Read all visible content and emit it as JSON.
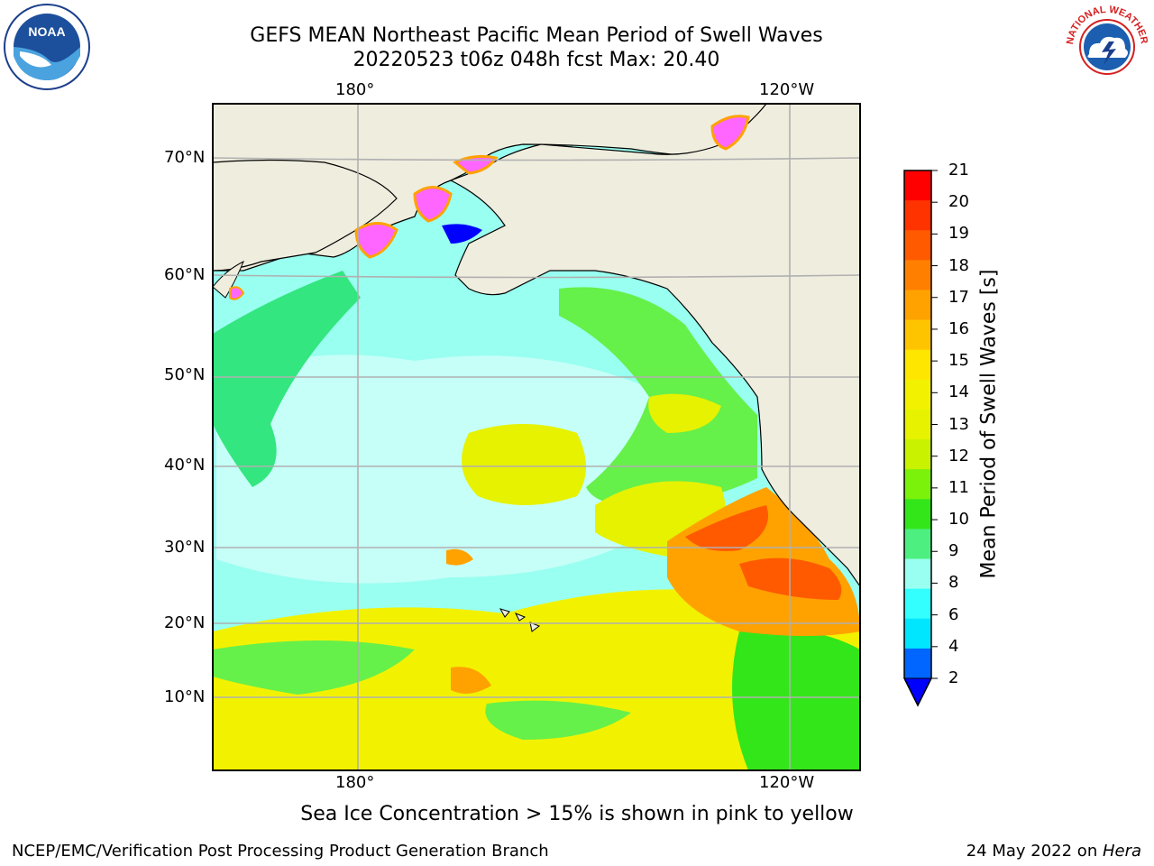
{
  "title": {
    "line1": "GEFS MEAN Northeast Pacific Mean Period of Swell Waves",
    "line2": "20220523 t06z 048h fcst   Max: 20.40"
  },
  "map": {
    "top_lon_labels": [
      "180°",
      "120°W"
    ],
    "bottom_lon_labels": [
      "180°",
      "120°W"
    ],
    "lat_labels": [
      "70°N",
      "60°N",
      "50°N",
      "40°N",
      "30°N",
      "20°N",
      "10°N"
    ]
  },
  "colorbar": {
    "label": "Mean Period of Swell Waves [s]",
    "ticks": [
      "21",
      "20",
      "19",
      "18",
      "17",
      "16",
      "15",
      "14",
      "13",
      "12",
      "11",
      "10",
      "9",
      "8",
      "6",
      "4",
      "2"
    ],
    "colors": [
      "#ff0000",
      "#ff3300",
      "#ff5a00",
      "#ff8000",
      "#ffa200",
      "#ffc400",
      "#ffe600",
      "#f2f200",
      "#e6f200",
      "#c8f200",
      "#7af20a",
      "#33e61a",
      "#4df080",
      "#99fff0",
      "#33ffff",
      "#00e6ff",
      "#0066ff"
    ],
    "extend_color": "#0000ff"
  },
  "note": "Sea Ice Concentration > 15% is shown in pink to yellow",
  "footer": {
    "left": "NCEP/EMC/Verification Post Processing Product Generation Branch",
    "right_prefix": "24 May 2022 on ",
    "right_host": "Hera"
  },
  "logos": {
    "noaa_text": "NOAA",
    "nws_text": "NATIONAL WEATHER SERVICE"
  }
}
